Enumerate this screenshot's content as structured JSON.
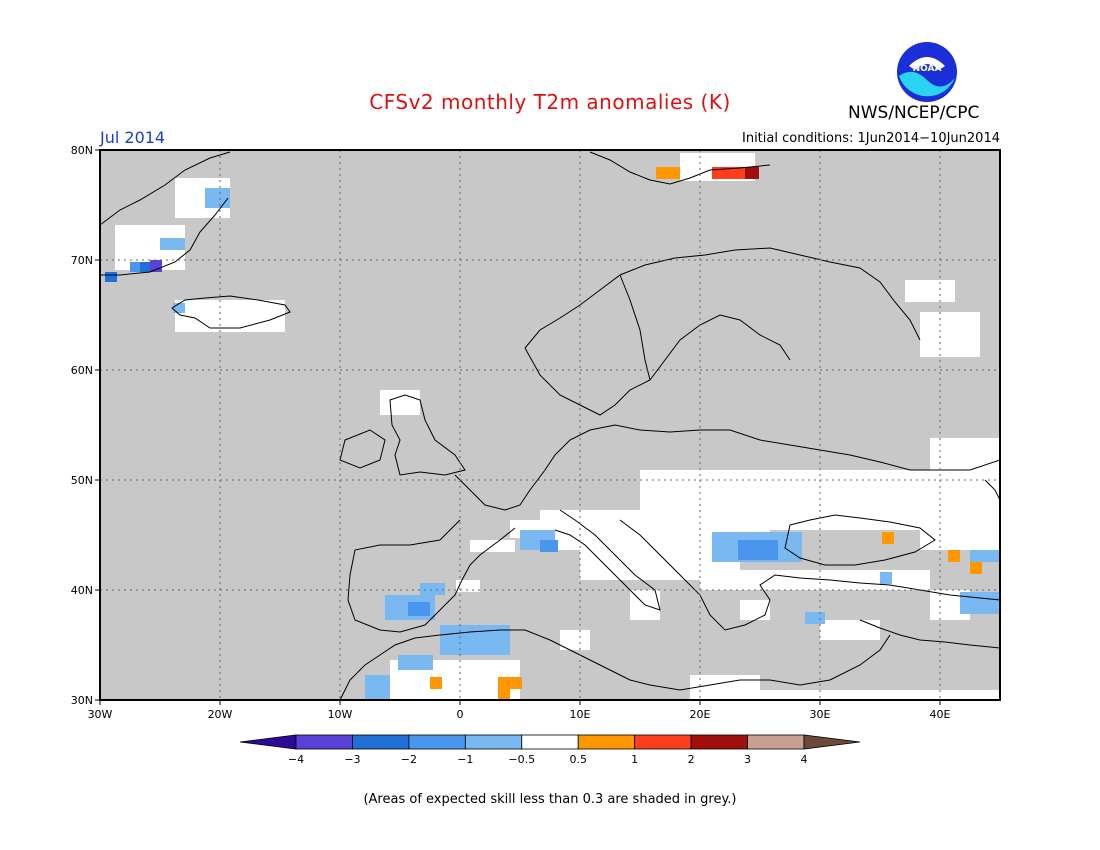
{
  "header": {
    "title": "CFSv2 monthly T2m anomalies (K)",
    "month": "Jul 2014",
    "initial_conditions": "Initial conditions: 1Jun2014−10Jun2014",
    "organization": "NWS/NCEP/CPC",
    "logo_text": "NOAA"
  },
  "map": {
    "lat_labels": [
      "80N",
      "70N",
      "60N",
      "50N",
      "40N",
      "30N"
    ],
    "lon_labels": [
      "30W",
      "20W",
      "10W",
      "0",
      "10E",
      "20E",
      "30E",
      "40E"
    ],
    "lat_range": [
      30,
      80
    ],
    "lon_range": [
      -30,
      45
    ],
    "gridlines": true,
    "colors": {
      "grey_skill": "#c8c8c8",
      "neutral": "#ffffff",
      "coast": "#000000"
    }
  },
  "colorbar": {
    "tick_labels": [
      "−4",
      "−3",
      "−2",
      "−1",
      "−0.5",
      "0.5",
      "1",
      "2",
      "3",
      "4"
    ],
    "colors": [
      "#2b0a9a",
      "#5a3fd8",
      "#2070d8",
      "#4a96ee",
      "#7ab8f2",
      "#ffffff",
      "#ff9800",
      "#ff3d1a",
      "#a00e0e",
      "#c8a090",
      "#6b4a3a"
    ]
  },
  "footnote": "(Areas of expected skill less than 0.3 are shaded in grey.)"
}
